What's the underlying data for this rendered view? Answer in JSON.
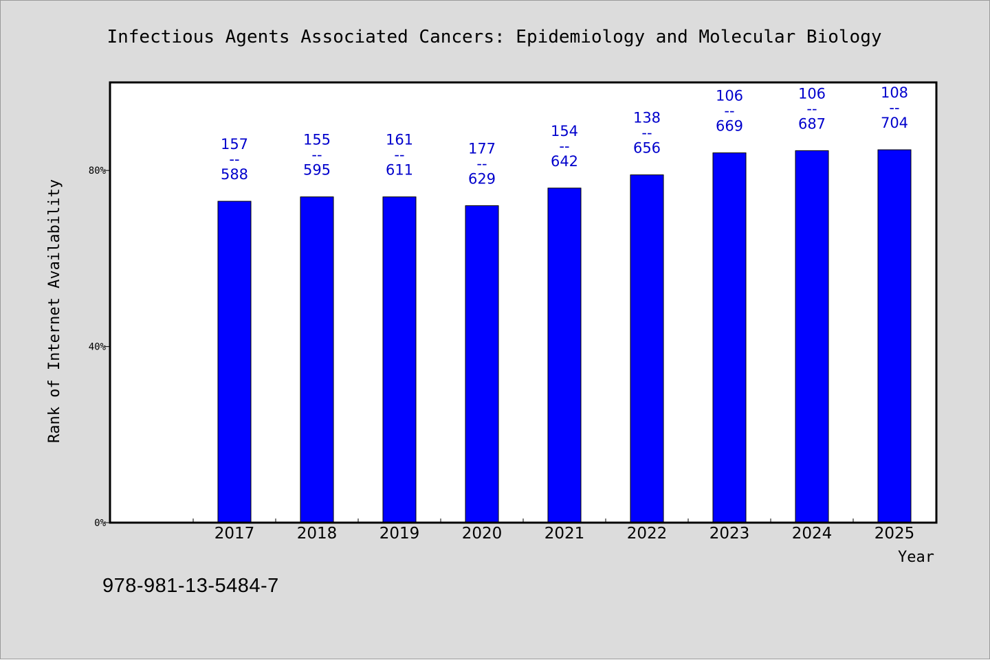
{
  "chart_data": {
    "type": "bar",
    "title": "Infectious Agents Associated Cancers: Epidemiology and Molecular Biology",
    "xlabel": "Year",
    "ylabel": "Rank of Internet Availability",
    "categories": [
      "2017",
      "2018",
      "2019",
      "2020",
      "2021",
      "2022",
      "2023",
      "2024",
      "2025"
    ],
    "values": [
      73,
      74,
      74,
      72,
      76,
      79,
      84,
      84.5,
      84.7
    ],
    "value_unit": "%",
    "ylim": [
      0,
      100
    ],
    "yticks": [
      0,
      40,
      80
    ],
    "ytick_labels": [
      "0%",
      "40%",
      "80%"
    ],
    "bar_labels": [
      {
        "top": "157",
        "sep": "--",
        "bottom": "588"
      },
      {
        "top": "155",
        "sep": "--",
        "bottom": "595"
      },
      {
        "top": "161",
        "sep": "--",
        "bottom": "611"
      },
      {
        "top": "177",
        "sep": "--",
        "bottom": "629"
      },
      {
        "top": "154",
        "sep": "--",
        "bottom": "642"
      },
      {
        "top": "138",
        "sep": "--",
        "bottom": "656"
      },
      {
        "top": "106",
        "sep": "--",
        "bottom": "669"
      },
      {
        "top": "106",
        "sep": "--",
        "bottom": "687"
      },
      {
        "top": "108",
        "sep": "--",
        "bottom": "704"
      }
    ],
    "bar_color": "#0000ff",
    "label_color": "#0000cc",
    "background_color": "#dcdcdc",
    "plot_background_color": "#ffffff",
    "grid": false,
    "legend": "none"
  },
  "footer": {
    "isbn": "978-981-13-5484-7"
  }
}
